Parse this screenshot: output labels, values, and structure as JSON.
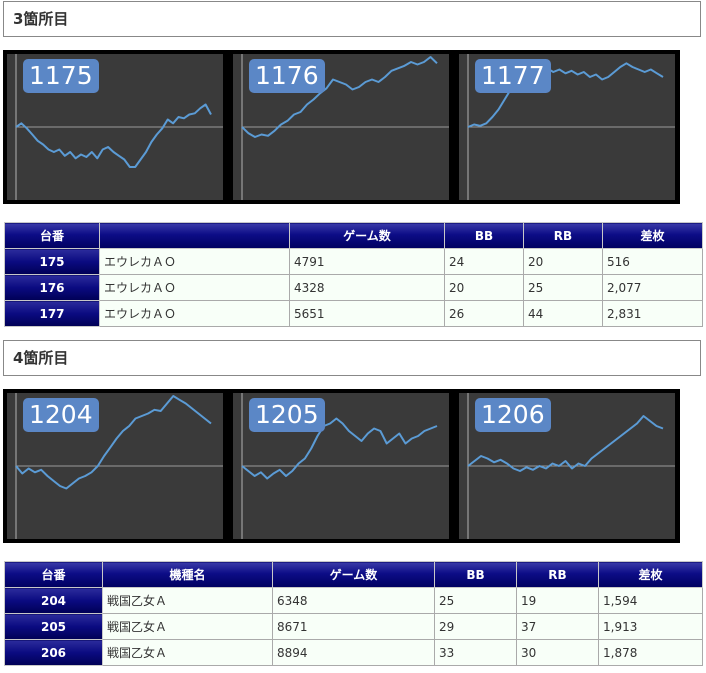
{
  "sections": [
    {
      "title": "3箇所目",
      "charts": [
        {
          "label": "1175",
          "values": [
            0,
            3,
            -1,
            -6,
            -11,
            -14,
            -18,
            -20,
            -18,
            -23,
            -20,
            -25,
            -22,
            -24,
            -20,
            -25,
            -18,
            -16,
            -20,
            -23,
            -26,
            -32,
            -32,
            -26,
            -20,
            -12,
            -6,
            -1,
            6,
            3,
            8,
            7,
            10,
            11,
            15,
            18,
            10
          ]
        },
        {
          "label": "1176",
          "values": [
            0,
            -5,
            -8,
            -6,
            -7,
            -3,
            2,
            5,
            10,
            12,
            18,
            22,
            27,
            31,
            38,
            36,
            34,
            30,
            32,
            36,
            38,
            36,
            40,
            45,
            47,
            49,
            52,
            50,
            52,
            56,
            51
          ]
        },
        {
          "label": "1177",
          "values": [
            0,
            2,
            1,
            3,
            8,
            14,
            22,
            30,
            36,
            42,
            45,
            47,
            45,
            47,
            44,
            46,
            43,
            45,
            42,
            44,
            40,
            42,
            38,
            40,
            44,
            48,
            51,
            48,
            46,
            44,
            46,
            43,
            40
          ]
        }
      ],
      "table": {
        "headers": [
          "台番",
          "",
          "ゲーム数",
          "BB",
          "RB",
          "差枚"
        ],
        "rows": [
          {
            "no": "175",
            "model": "エウレカＡＯ",
            "games": "4791",
            "bb": "24",
            "rb": "20",
            "diff": "516"
          },
          {
            "no": "176",
            "model": "エウレカＡＯ",
            "games": "4328",
            "bb": "20",
            "rb": "25",
            "diff": "2,077"
          },
          {
            "no": "177",
            "model": "エウレカＡＯ",
            "games": "5651",
            "bb": "26",
            "rb": "44",
            "diff": "2,831"
          }
        ]
      }
    },
    {
      "title": "4箇所目",
      "charts": [
        {
          "label": "1204",
          "values": [
            0,
            -6,
            -2,
            -5,
            -3,
            -8,
            -12,
            -16,
            -18,
            -14,
            -10,
            -8,
            -5,
            0,
            8,
            15,
            22,
            28,
            32,
            38,
            40,
            42,
            45,
            44,
            50,
            56,
            53,
            50,
            46,
            42,
            38,
            34
          ]
        },
        {
          "label": "1205",
          "values": [
            0,
            -4,
            -8,
            -5,
            -10,
            -6,
            -3,
            -8,
            -4,
            2,
            6,
            14,
            24,
            32,
            34,
            38,
            34,
            28,
            24,
            20,
            26,
            30,
            28,
            18,
            22,
            26,
            18,
            22,
            24,
            28,
            30,
            32
          ]
        },
        {
          "label": "1206",
          "values": [
            0,
            4,
            8,
            6,
            3,
            5,
            2,
            -2,
            -4,
            -1,
            -3,
            0,
            -2,
            2,
            0,
            4,
            -2,
            2,
            0,
            6,
            10,
            14,
            18,
            22,
            26,
            30,
            34,
            40,
            36,
            32,
            30
          ]
        }
      ],
      "table": {
        "headers": [
          "台番",
          "機種名",
          "ゲーム数",
          "BB",
          "RB",
          "差枚"
        ],
        "rows": [
          {
            "no": "204",
            "model": "戦国乙女Ａ",
            "games": "6348",
            "bb": "25",
            "rb": "19",
            "diff": "1,594"
          },
          {
            "no": "205",
            "model": "戦国乙女Ａ",
            "games": "8671",
            "bb": "29",
            "rb": "37",
            "diff": "1,913"
          },
          {
            "no": "206",
            "model": "戦国乙女Ａ",
            "games": "8894",
            "bb": "33",
            "rb": "30",
            "diff": "1,878"
          }
        ]
      }
    }
  ],
  "chart_colors": {
    "line": "#5b9bd5",
    "baseline": "#9a9a9a",
    "background": "#3a3a3a",
    "frame": "#000000"
  }
}
